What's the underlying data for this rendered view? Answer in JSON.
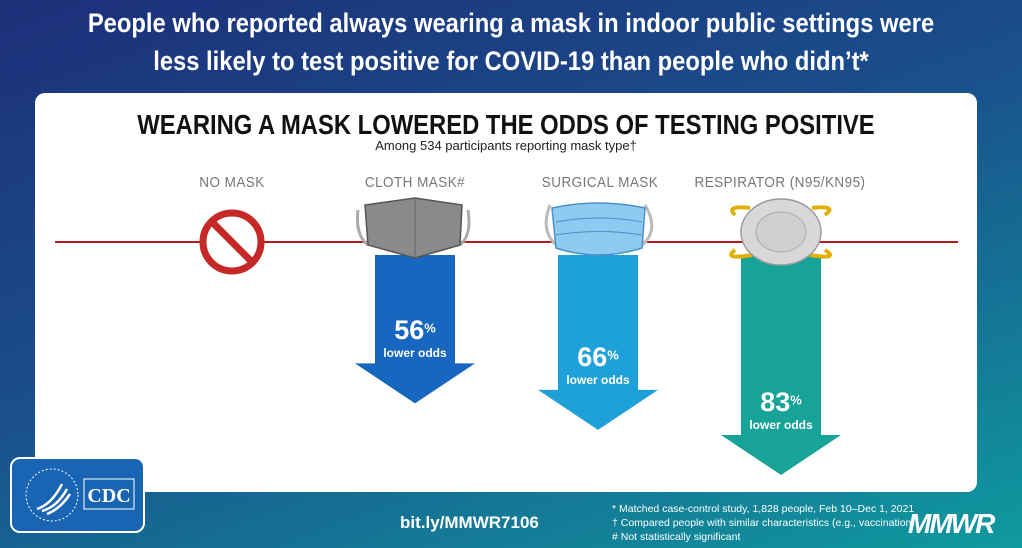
{
  "title_line1": "People who reported always wearing a mask in indoor public settings were",
  "title_line2": "less likely to test positive for COVID-19 than people who didn’t*",
  "chart_data": {
    "type": "bar",
    "title": "WEARING A MASK LOWERED THE ODDS OF TESTING POSITIVE",
    "subtitle": "Among 534 participants reporting mask type†",
    "categories": [
      "NO MASK",
      "CLOTH MASK#",
      "SURGICAL MASK",
      "RESPIRATOR (N95/KN95)"
    ],
    "values": [
      0,
      56,
      66,
      83
    ],
    "value_suffix": "%",
    "value_caption": "lower odds",
    "colors": [
      "#d32f2f",
      "#1766c0",
      "#1ea0d8",
      "#17a398"
    ]
  },
  "footer": {
    "link": "bit.ly/MMWR7106",
    "notes": [
      "* Matched case-control study, 1,828 people, Feb 10–Dec 1, 2021",
      "† Compared people with similar characteristics (e.g., vaccination)",
      "# Not statistically significant"
    ],
    "brand": "MMWR",
    "logo": "CDC"
  }
}
